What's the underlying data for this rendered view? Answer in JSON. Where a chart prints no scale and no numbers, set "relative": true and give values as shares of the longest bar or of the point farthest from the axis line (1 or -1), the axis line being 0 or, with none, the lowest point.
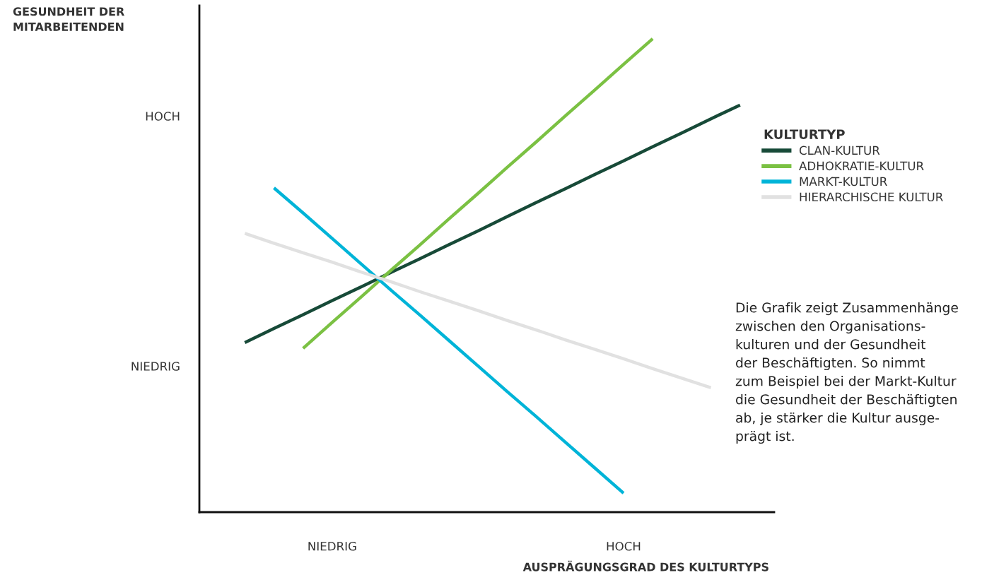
{
  "chart_data": {
    "type": "line",
    "xlabel": "AUSPRÄGUNGSGRAD DES KULTURTYPS",
    "legend_title": "KULTURTYP",
    "legend": "right",
    "relative": true,
    "marker": "none",
    "line_style": "solid",
    "categories": [
      null,
      null,
      null,
      null,
      "NIEDRIG",
      null,
      null,
      null,
      null,
      null,
      null,
      null,
      null,
      null,
      "HOCH",
      null,
      null,
      null,
      null,
      null
    ],
    "series": [
      {
        "name": "CLAN-KULTUR",
        "color": "#174a38",
        "values": [
          null,
          0.358,
          0.388,
          0.417,
          0.447,
          0.476,
          0.506,
          0.535,
          0.565,
          0.594,
          0.624,
          0.654,
          0.683,
          0.713,
          0.742,
          0.772,
          0.801,
          0.831,
          0.86,
          null
        ]
      },
      {
        "name": "ADHOKRATIE-KULTUR",
        "color": "#7bc143",
        "values": [
          null,
          null,
          null,
          0.346,
          0.401,
          0.455,
          0.51,
          0.564,
          0.619,
          0.673,
          0.728,
          0.782,
          0.837,
          0.891,
          0.946,
          1.0,
          null,
          null,
          null,
          null
        ]
      },
      {
        "name": "MARKT-KULTUR",
        "color": "#00b4d8",
        "values": [
          null,
          null,
          0.685,
          0.632,
          0.578,
          0.524,
          0.47,
          0.417,
          0.363,
          0.309,
          0.255,
          0.202,
          0.148,
          0.094,
          0.04,
          null,
          null,
          null,
          null,
          null
        ]
      },
      {
        "name": "HIERARCHISCHE KULTUR",
        "color": "#e1e1e1",
        "values": [
          null,
          0.589,
          0.568,
          0.548,
          0.528,
          0.507,
          0.487,
          0.466,
          0.446,
          0.426,
          0.405,
          0.385,
          0.364,
          0.344,
          0.324,
          0.303,
          0.283,
          0.263,
          null,
          null
        ]
      }
    ],
    "annotations": [
      "GESUNDHEIT DER\nMITARBEITENDEN",
      "NIEDRIG",
      "HOCH",
      "Die Grafik zeigt Zusammenhänge\nzwischen den Organisations-\nkulturen und der Gesundheit\nder Beschäftigten. So nimmt\nzum Beispiel bei der Markt-Kultur\ndie Gesundheit der Beschäftigten\nab, je stärker die Kultur ausge-\nprägt ist."
    ]
  }
}
